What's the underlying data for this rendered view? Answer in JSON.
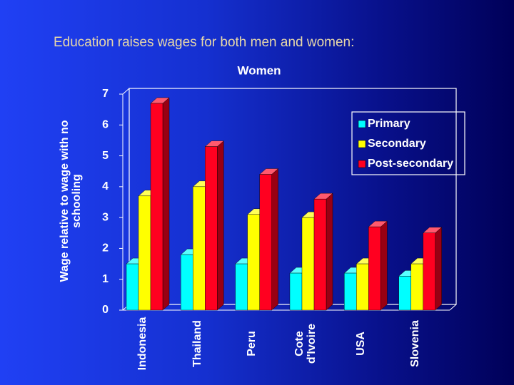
{
  "chart_data": {
    "type": "bar3d",
    "title": "Education raises wages for both men and women:",
    "subtitle": "Women",
    "y_label": "Wage relative to wage with no schooling",
    "categories": [
      "Indonesia",
      "Thailand",
      "Peru",
      "Cote d'Ivoire",
      "USA",
      "Slovenia"
    ],
    "series": [
      {
        "name": "Primary",
        "color": "#00ffff",
        "values": [
          1.5,
          1.8,
          1.5,
          1.2,
          1.2,
          1.1
        ]
      },
      {
        "name": "Secondary",
        "color": "#ffff00",
        "values": [
          3.7,
          4.0,
          3.1,
          3.0,
          1.5,
          1.5
        ]
      },
      {
        "name": "Post-secondary",
        "color": "#ff0020",
        "values": [
          6.7,
          5.3,
          4.4,
          3.6,
          2.7,
          2.5
        ]
      }
    ],
    "ylim": [
      0,
      7
    ],
    "yticks": [
      0,
      1,
      2,
      3,
      4,
      5,
      6,
      7
    ],
    "grid": false,
    "legend": "upper-right"
  }
}
